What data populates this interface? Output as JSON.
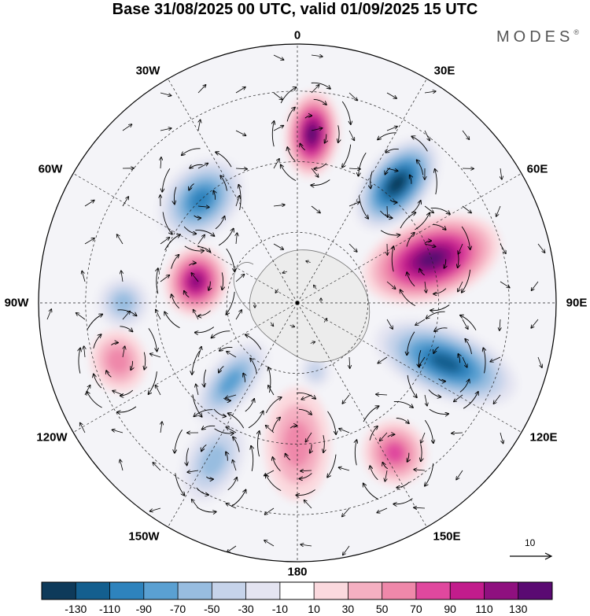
{
  "title": "Base 31/08/2025 00 UTC, valid 01/09/2025 15 UTC",
  "brand": {
    "name": "MODES",
    "mark": "®"
  },
  "longitude_labels": {
    "l0": "0",
    "l30e": "30E",
    "l60e": "60E",
    "l90e": "90E",
    "l120e": "120E",
    "l150e": "150E",
    "l180": "180",
    "l150w": "150W",
    "l120w": "120W",
    "l90w": "90W",
    "l60w": "60W",
    "l30w": "30W"
  },
  "reference_vector": {
    "label": "10",
    "magnitude": 10
  },
  "colorbar": {
    "colors": [
      "#0e3a5a",
      "#145f8f",
      "#2e83bd",
      "#5aa0d2",
      "#98bde0",
      "#c6d3ea",
      "#e4e4f1",
      "#ffffff",
      "#fbd9de",
      "#f5b0c2",
      "#ef88aa",
      "#e0489e",
      "#c21c8c",
      "#8f107f",
      "#5a0a72"
    ],
    "ticks": [
      "-130",
      "-110",
      "-90",
      "-70",
      "-50",
      "-30",
      "-10",
      "10",
      "30",
      "50",
      "70",
      "90",
      "110",
      "130"
    ]
  },
  "anomaly_centers": [
    {
      "lon": 5,
      "colat": 36,
      "value": 120,
      "rx": 34,
      "ry": 55
    },
    {
      "lon": 40,
      "colat": 33,
      "value": -130,
      "rx": 40,
      "ry": 68
    },
    {
      "lon": 72,
      "colat": 30,
      "value": 125,
      "rx": 52,
      "ry": 90
    },
    {
      "lon": 112,
      "colat": 34,
      "value": -105,
      "rx": 45,
      "ry": 95
    },
    {
      "lon": 147,
      "colat": 38,
      "value": 60,
      "rx": 40,
      "ry": 42
    },
    {
      "lon": 180,
      "colat": 30,
      "value": 45,
      "rx": 42,
      "ry": 72
    },
    {
      "lon": -152,
      "colat": 38,
      "value": -50,
      "rx": 35,
      "ry": 55
    },
    {
      "lon": -140,
      "colat": 22,
      "value": -60,
      "rx": 30,
      "ry": 62
    },
    {
      "lon": -108,
      "colat": 40,
      "value": 45,
      "rx": 40,
      "ry": 35
    },
    {
      "lon": -78,
      "colat": 22,
      "value": 110,
      "rx": 45,
      "ry": 40
    },
    {
      "lon": -43,
      "colat": 30,
      "value": -95,
      "rx": 60,
      "ry": 45
    },
    {
      "lon": -90,
      "colat": 37,
      "value": -40,
      "rx": 32,
      "ry": 32
    },
    {
      "lon": 125,
      "colat": 10,
      "value": 30,
      "rx": 25,
      "ry": 22
    },
    {
      "lon": 165,
      "colat": 15,
      "value": -25,
      "rx": 18,
      "ry": 20
    }
  ],
  "vortex_centers": [
    {
      "lon": 5,
      "colat": 36,
      "dir": 1
    },
    {
      "lon": 40,
      "colat": 33,
      "dir": -1
    },
    {
      "lon": 72,
      "colat": 30,
      "dir": 1
    },
    {
      "lon": 112,
      "colat": 34,
      "dir": -1
    },
    {
      "lon": 147,
      "colat": 38,
      "dir": 1
    },
    {
      "lon": 180,
      "colat": 30,
      "dir": 1
    },
    {
      "lon": -152,
      "colat": 38,
      "dir": -1
    },
    {
      "lon": -140,
      "colat": 22,
      "dir": -1
    },
    {
      "lon": -108,
      "colat": 40,
      "dir": 1
    },
    {
      "lon": -78,
      "colat": 22,
      "dir": 1
    },
    {
      "lon": -43,
      "colat": 30,
      "dir": -1
    }
  ]
}
